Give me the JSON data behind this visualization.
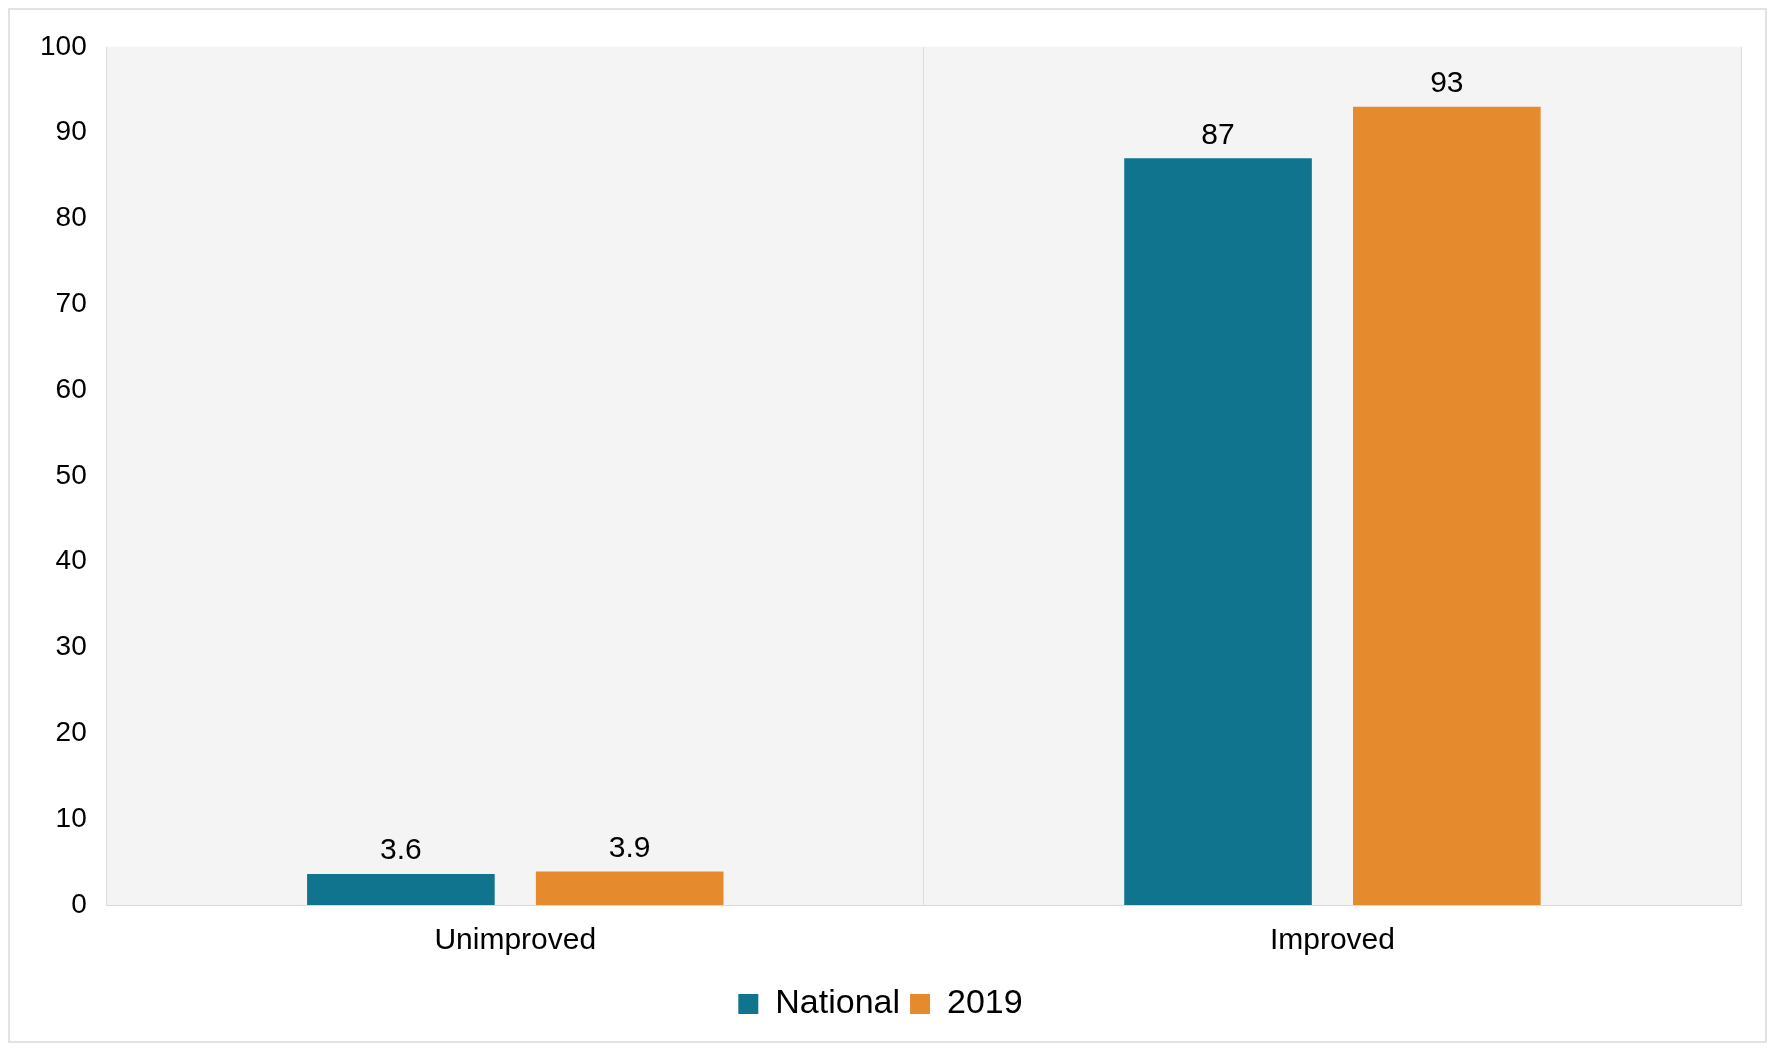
{
  "chart_data": {
    "type": "bar",
    "categories": [
      "Unimproved",
      "Improved"
    ],
    "series": [
      {
        "name": "National",
        "color": "#11748f",
        "values": [
          3.6,
          87
        ]
      },
      {
        "name": "2019",
        "color": "#e68a2e",
        "values": [
          3.9,
          93
        ]
      }
    ],
    "ylim": [
      0,
      100
    ],
    "yticks": [
      0,
      10,
      20,
      30,
      40,
      50,
      60,
      70,
      80,
      90,
      100
    ],
    "grid": "x",
    "legend": "bottom",
    "data_labels": true
  }
}
